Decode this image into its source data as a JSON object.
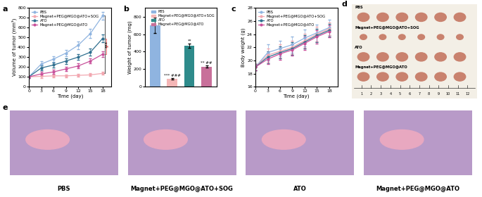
{
  "chart_data": [
    {
      "panel": "a",
      "type": "line",
      "xlabel": "Time (day)",
      "ylabel": "Volume of tumor (mm³)",
      "x": [
        0,
        3,
        6,
        9,
        12,
        15,
        18
      ],
      "xlim": [
        0,
        20
      ],
      "xticks": [
        0,
        3,
        6,
        9,
        12,
        15,
        18
      ],
      "ylim": [
        0,
        800
      ],
      "yticks": [
        0,
        100,
        200,
        300,
        400,
        500,
        600,
        700,
        800
      ],
      "legend": "upper left",
      "marker": "o",
      "series": [
        {
          "name": "PBS",
          "color": "#8fb4e0",
          "values": [
            100,
            230,
            280,
            340,
            420,
            540,
            720
          ],
          "errors": [
            10,
            30,
            30,
            35,
            40,
            45,
            40
          ]
        },
        {
          "name": "Magnet+PEG@MGO@ATO+SOG",
          "color": "#f2a7b0",
          "values": [
            100,
            105,
            110,
            110,
            115,
            120,
            135
          ],
          "errors": [
            10,
            15,
            15,
            15,
            15,
            15,
            15
          ]
        },
        {
          "name": "ATO",
          "color": "#2f6f8f",
          "values": [
            100,
            190,
            220,
            260,
            300,
            350,
            490
          ],
          "errors": [
            10,
            25,
            25,
            30,
            30,
            35,
            40
          ]
        },
        {
          "name": "Magnet+PEG@MGO@ATO",
          "color": "#c8509a",
          "values": [
            100,
            130,
            150,
            180,
            210,
            260,
            330
          ],
          "errors": [
            10,
            20,
            20,
            20,
            25,
            25,
            30
          ]
        }
      ],
      "annotations": [
        {
          "text": "***",
          "between": [
            "PBS",
            "Magnet+PEG@MGO@ATO+SOG"
          ]
        },
        {
          "text": "*",
          "between": [
            "ATO",
            "Magnet+PEG@MGO@ATO"
          ]
        }
      ]
    },
    {
      "panel": "b",
      "type": "bar",
      "ylabel": "Weight of tumor (mg)",
      "categories": [
        "PBS",
        "Magnet+PEG@MGO@ATO+SOG",
        "ATO",
        "Magnet+PEG@MGO@ATO"
      ],
      "values": [
        700,
        90,
        470,
        230
      ],
      "errors": [
        90,
        10,
        25,
        10
      ],
      "colors": [
        "#8fb4e0",
        "#f4b6b6",
        "#2e8b8b",
        "#c8709a"
      ],
      "significance": [
        null,
        "*** ###",
        "**",
        "** ##"
      ],
      "ylim": [
        0,
        900
      ],
      "yticks": [
        0,
        200,
        400,
        600,
        800
      ],
      "legend": "upper right",
      "tick_labels": "y"
    },
    {
      "panel": "c",
      "type": "line",
      "xlabel": "Time (day)",
      "ylabel": "Body weight (g)",
      "x": [
        0,
        3,
        6,
        9,
        12,
        15,
        18
      ],
      "xlim": [
        0,
        20
      ],
      "xticks": [
        0,
        3,
        6,
        9,
        12,
        15,
        18
      ],
      "ylim": [
        16,
        28
      ],
      "yticks": [
        16,
        18,
        20,
        22,
        24,
        26,
        28
      ],
      "legend": "upper left",
      "marker": "o",
      "series": [
        {
          "name": "PBS",
          "color": "#8fb4e0",
          "values": [
            19,
            21.2,
            21.8,
            22.4,
            23.4,
            24.2,
            25
          ],
          "errors": [
            0.5,
            1.2,
            1.2,
            1.2,
            1.3,
            1.3,
            1.2
          ]
        },
        {
          "name": "Magnet+PEG@MGO@ATO+SOG",
          "color": "#f2a7b0",
          "values": [
            19,
            20.8,
            21.4,
            22,
            23,
            24,
            24.8
          ],
          "errors": [
            0.5,
            1.0,
            1.0,
            1.0,
            1.1,
            1.1,
            1.0
          ]
        },
        {
          "name": "ATO",
          "color": "#2f6f8f",
          "values": [
            19,
            20.5,
            21.2,
            21.8,
            22.8,
            23.8,
            24.6
          ],
          "errors": [
            0.5,
            0.9,
            0.9,
            1.0,
            1.0,
            1.0,
            1.0
          ]
        },
        {
          "name": "Magnet+PEG@MGO@ATO",
          "color": "#c8509a",
          "values": [
            19,
            20.2,
            21,
            21.6,
            22.6,
            23.6,
            24.4
          ],
          "errors": [
            0.5,
            0.8,
            0.9,
            0.9,
            1.0,
            1.0,
            0.9
          ]
        }
      ]
    }
  ],
  "photos": {
    "panel": "d",
    "groups": [
      "PBS",
      "Magnet+PEG@MGO@ATO+SOG",
      "ATO",
      "Magnet+PEG@MGO@ATO"
    ],
    "ruler_ticks": [
      1,
      2,
      3,
      4,
      5,
      6,
      7,
      8,
      9,
      10,
      11,
      12
    ]
  },
  "micrographs": {
    "panel": "e",
    "labels": [
      "PBS",
      "Magnet+PEG@MGO@ATO+SOG",
      "ATO",
      "Magnet+PEG@MGO@ATO"
    ]
  }
}
